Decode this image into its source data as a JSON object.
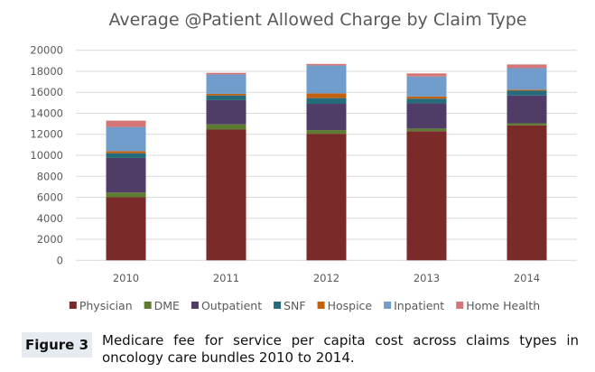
{
  "chart_data": {
    "type": "bar",
    "stacked": true,
    "title": "Average @Patient Allowed Charge by Claim Type",
    "xlabel": "",
    "ylabel": "",
    "ylim": [
      0,
      20000
    ],
    "yticks": [
      0,
      2000,
      4000,
      6000,
      8000,
      10000,
      12000,
      14000,
      16000,
      18000,
      20000
    ],
    "grid": true,
    "legend_position": "bottom",
    "categories": [
      "2010",
      "2011",
      "2012",
      "2013",
      "2014"
    ],
    "series": [
      {
        "name": "Physician",
        "color": "#7b2a2a",
        "values": [
          6000,
          12450,
          12050,
          12300,
          12850
        ]
      },
      {
        "name": "DME",
        "color": "#5e7b32",
        "values": [
          450,
          500,
          350,
          250,
          200
        ]
      },
      {
        "name": "Outpatient",
        "color": "#4f3d67",
        "values": [
          3300,
          2300,
          2500,
          2400,
          2650
        ]
      },
      {
        "name": "SNF",
        "color": "#246b7b",
        "values": [
          450,
          450,
          550,
          450,
          450
        ]
      },
      {
        "name": "Hospice",
        "color": "#c2610f",
        "values": [
          200,
          150,
          450,
          200,
          100
        ]
      },
      {
        "name": "Inpatient",
        "color": "#719dcd",
        "values": [
          2300,
          1850,
          2650,
          1900,
          2050
        ]
      },
      {
        "name": "Home Health",
        "color": "#d57575",
        "values": [
          600,
          150,
          150,
          300,
          350
        ]
      }
    ]
  },
  "caption": {
    "label": "Figure 3",
    "text": "Medicare fee for service per capita cost across claims types in oncology care bundles 2010 to 2014."
  }
}
